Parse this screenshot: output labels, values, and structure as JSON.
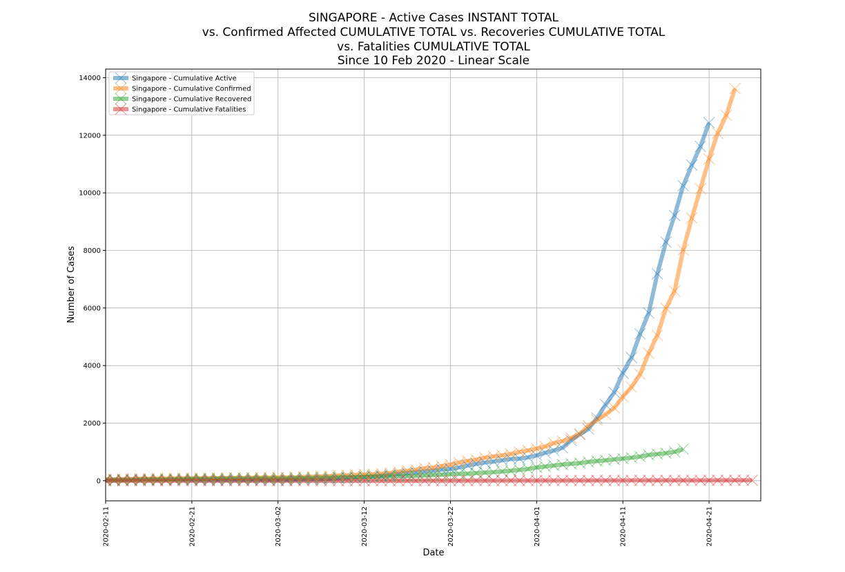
{
  "chart_data": {
    "type": "line",
    "title": [
      "SINGAPORE - Active Cases INSTANT TOTAL",
      "vs. Confirmed Affected CUMULATIVE TOTAL vs. Recoveries CUMULATIVE TOTAL",
      "vs. Fatalities CUMULATIVE TOTAL",
      "Since 10 Feb 2020 - Linear Scale"
    ],
    "xlabel": "Date",
    "ylabel": "Number of Cases",
    "x_start": "2020-02-11",
    "x_end": "2020-04-27",
    "xlim": [
      "2020-02-11",
      "2020-04-27"
    ],
    "xticks": [
      "2020-02-11",
      "2020-02-21",
      "2020-03-02",
      "2020-03-12",
      "2020-03-22",
      "2020-04-01",
      "2020-04-11",
      "2020-04-21"
    ],
    "ylim": [
      -700,
      14300
    ],
    "yticks": [
      0,
      2000,
      4000,
      6000,
      8000,
      10000,
      12000,
      14000
    ],
    "grid": true,
    "legend_position": "top-left",
    "series": [
      {
        "name": "Singapore - Cumulative Active",
        "color": "#1f77b4",
        "values": [
          35,
          40,
          44,
          45,
          47,
          46,
          43,
          40,
          40,
          37,
          34,
          32,
          31,
          29,
          29,
          31,
          30,
          35,
          31,
          30,
          28,
          29,
          41,
          49,
          52,
          55,
          66,
          88,
          104,
          117,
          130,
          150,
          171,
          202,
          238,
          266,
          291,
          319,
          346,
          388,
          407,
          459,
          525,
          584,
          632,
          666,
          708,
          753,
          764,
          810,
          879,
          970,
          1048,
          1143,
          1404,
          1608,
          1794,
          2179,
          2641,
          3071,
          3743,
          4277,
          5101,
          5826,
          7187,
          8289,
          9215,
          10251,
          10964,
          11613,
          12435
        ]
      },
      {
        "name": "Singapore - Cumulative Confirmed",
        "color": "#ff7f0e",
        "values": [
          45,
          47,
          50,
          58,
          67,
          72,
          75,
          77,
          81,
          84,
          85,
          86,
          89,
          91,
          93,
          96,
          98,
          102,
          106,
          108,
          110,
          112,
          117,
          130,
          138,
          150,
          160,
          178,
          187,
          200,
          212,
          226,
          243,
          266,
          313,
          345,
          385,
          432,
          455,
          509,
          558,
          631,
          683,
          732,
          802,
          844,
          879,
          926,
          1000,
          1049,
          1114,
          1189,
          1309,
          1375,
          1481,
          1623,
          1910,
          2108,
          2299,
          2532,
          2918,
          3252,
          3699,
          4427,
          5050,
          5992,
          6588,
          8014,
          9125,
          10141,
          11178,
          12075,
          12693,
          13624
        ]
      },
      {
        "name": "Singapore - Cumulative Recovered",
        "color": "#2ca02c",
        "values": [
          9,
          15,
          17,
          18,
          24,
          34,
          34,
          37,
          51,
          53,
          58,
          62,
          66,
          72,
          78,
          78,
          78,
          78,
          78,
          79,
          81,
          82,
          96,
          96,
          97,
          105,
          109,
          114,
          117,
          124,
          140,
          144,
          144,
          152,
          156,
          160,
          172,
          183,
          198,
          212,
          228,
          240,
          245,
          266,
          282,
          297,
          320,
          344,
          377,
          406,
          460,
          492,
          528,
          560,
          586,
          611,
          652,
          683,
          708,
          740,
          768,
          801,
          838,
          896,
          924,
          956,
          1002,
          1095
        ]
      },
      {
        "name": "Singapore - Cumulative Fatalities",
        "color": "#d62728",
        "values": [
          0,
          0,
          0,
          0,
          0,
          0,
          0,
          0,
          0,
          0,
          0,
          0,
          0,
          0,
          0,
          0,
          0,
          0,
          0,
          0,
          0,
          0,
          0,
          0,
          0,
          0,
          0,
          0,
          0,
          0,
          0,
          0,
          0,
          0,
          0,
          0,
          0,
          2,
          2,
          2,
          2,
          2,
          2,
          3,
          3,
          3,
          4,
          5,
          5,
          6,
          6,
          6,
          6,
          6,
          7,
          7,
          8,
          8,
          8,
          8,
          9,
          10,
          11,
          11,
          11,
          11,
          11,
          11,
          12,
          12,
          12,
          14,
          14,
          14,
          14,
          14
        ]
      }
    ]
  }
}
